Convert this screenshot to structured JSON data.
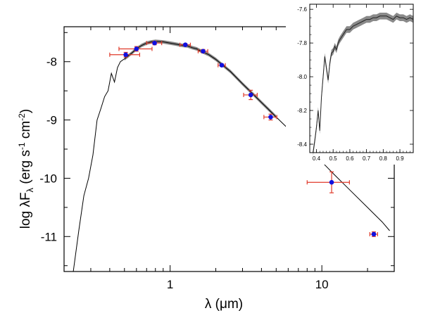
{
  "chart_data": [
    {
      "type": "line",
      "xlabel_prefix": "λ (",
      "xlabel_unit": "μm",
      "xlabel_suffix": ")",
      "ylabel_main": "log λF",
      "ylabel_sub": "λ",
      "ylabel_units": " (erg s",
      "ylabel_exp1": "-1",
      "ylabel_mid": " cm",
      "ylabel_exp2": "-2",
      "ylabel_end": ")",
      "x_scale": "log",
      "xlim": [
        0.2,
        30
      ],
      "ylim": [
        -11.6,
        -7.4
      ],
      "x_ticks": [
        {
          "value": 1,
          "label": "1"
        },
        {
          "value": 10,
          "label": "10"
        }
      ],
      "y_ticks": [
        {
          "value": -8,
          "label": "-8"
        },
        {
          "value": -9,
          "label": "-9"
        },
        {
          "value": -10,
          "label": "-10"
        },
        {
          "value": -11,
          "label": "-11"
        }
      ],
      "model_sed": {
        "x": [
          0.23,
          0.25,
          0.27,
          0.29,
          0.31,
          0.33,
          0.35,
          0.37,
          0.39,
          0.41,
          0.43,
          0.45,
          0.47,
          0.5,
          0.53,
          0.56,
          0.6,
          0.65,
          0.7,
          0.75,
          0.8,
          0.9,
          1.0,
          1.1,
          1.2,
          1.3,
          1.4,
          1.5,
          1.6,
          1.7,
          1.8,
          2.0,
          2.2,
          2.5,
          3.0,
          3.5,
          4.0,
          4.5,
          5.0,
          6.0,
          7.0,
          8.0,
          10.0,
          12.0,
          15.0,
          20.0,
          25.0,
          28.0
        ],
        "y": [
          -11.6,
          -10.9,
          -10.3,
          -10.0,
          -9.6,
          -9.0,
          -8.8,
          -8.6,
          -8.5,
          -8.2,
          -8.35,
          -8.1,
          -8.0,
          -7.95,
          -7.9,
          -7.85,
          -7.78,
          -7.72,
          -7.68,
          -7.66,
          -7.65,
          -7.66,
          -7.68,
          -7.7,
          -7.72,
          -7.73,
          -7.76,
          -7.78,
          -7.82,
          -7.85,
          -7.88,
          -7.96,
          -8.05,
          -8.17,
          -8.38,
          -8.55,
          -8.7,
          -8.83,
          -8.95,
          -9.15,
          -9.32,
          -9.48,
          -9.72,
          -9.93,
          -10.18,
          -10.5,
          -10.75,
          -10.9
        ]
      },
      "photometry": {
        "x": [
          0.51,
          0.6,
          0.79,
          1.26,
          1.65,
          2.19,
          3.4,
          4.6,
          11.6,
          22.0
        ],
        "y": [
          -7.88,
          -7.78,
          -7.68,
          -7.71,
          -7.82,
          -8.06,
          -8.57,
          -8.95,
          -10.07,
          -10.96
        ],
        "x_err_low": [
          0.11,
          0.14,
          0.09,
          0.1,
          0.12,
          0.12,
          0.35,
          0.45,
          3.6,
          1.3
        ],
        "x_err_high": [
          0.12,
          0.16,
          0.09,
          0.1,
          0.12,
          0.12,
          0.35,
          0.45,
          3.6,
          1.3
        ],
        "y_err": [
          0.04,
          0.04,
          0.03,
          0.02,
          0.03,
          0.02,
          0.08,
          0.05,
          0.18,
          0.04
        ]
      },
      "colors": {
        "model": "#000000",
        "model_band": "#8a8a8a",
        "points": "#1010e0",
        "error_bars": "#e03a2a"
      }
    },
    {
      "type": "line",
      "panel": "inset",
      "xlim": [
        0.36,
        0.98
      ],
      "ylim": [
        -8.45,
        -7.57
      ],
      "x_ticks": [
        {
          "value": 0.4,
          "label": "0.4"
        },
        {
          "value": 0.5,
          "label": "0.5"
        },
        {
          "value": 0.6,
          "label": "0.6"
        },
        {
          "value": 0.7,
          "label": "0.7"
        },
        {
          "value": 0.8,
          "label": "0.8"
        },
        {
          "value": 0.9,
          "label": "0.9"
        }
      ],
      "y_ticks": [
        {
          "value": -7.6,
          "label": "-7.6"
        },
        {
          "value": -7.8,
          "label": "-7.8"
        },
        {
          "value": -8.0,
          "label": "-8.0"
        },
        {
          "value": -8.2,
          "label": "-8.2"
        },
        {
          "value": -8.4,
          "label": "-8.4"
        }
      ],
      "spectrum": {
        "x": [
          0.38,
          0.39,
          0.4,
          0.41,
          0.42,
          0.43,
          0.44,
          0.45,
          0.46,
          0.47,
          0.48,
          0.49,
          0.5,
          0.51,
          0.52,
          0.53,
          0.54,
          0.56,
          0.58,
          0.6,
          0.62,
          0.64,
          0.66,
          0.68,
          0.7,
          0.72,
          0.74,
          0.76,
          0.78,
          0.8,
          0.82,
          0.84,
          0.86,
          0.88,
          0.9,
          0.92,
          0.94,
          0.96,
          0.98
        ],
        "y": [
          -8.45,
          -8.38,
          -8.3,
          -8.2,
          -8.32,
          -8.12,
          -8.0,
          -7.88,
          -7.95,
          -8.02,
          -7.92,
          -7.86,
          -7.85,
          -7.82,
          -7.84,
          -7.8,
          -7.78,
          -7.75,
          -7.72,
          -7.72,
          -7.7,
          -7.69,
          -7.68,
          -7.67,
          -7.66,
          -7.66,
          -7.65,
          -7.65,
          -7.64,
          -7.64,
          -7.64,
          -7.65,
          -7.66,
          -7.64,
          -7.65,
          -7.65,
          -7.66,
          -7.65,
          -7.66
        ]
      },
      "colors": {
        "spectrum": "#222222",
        "band": "#8a8a8a"
      }
    }
  ]
}
